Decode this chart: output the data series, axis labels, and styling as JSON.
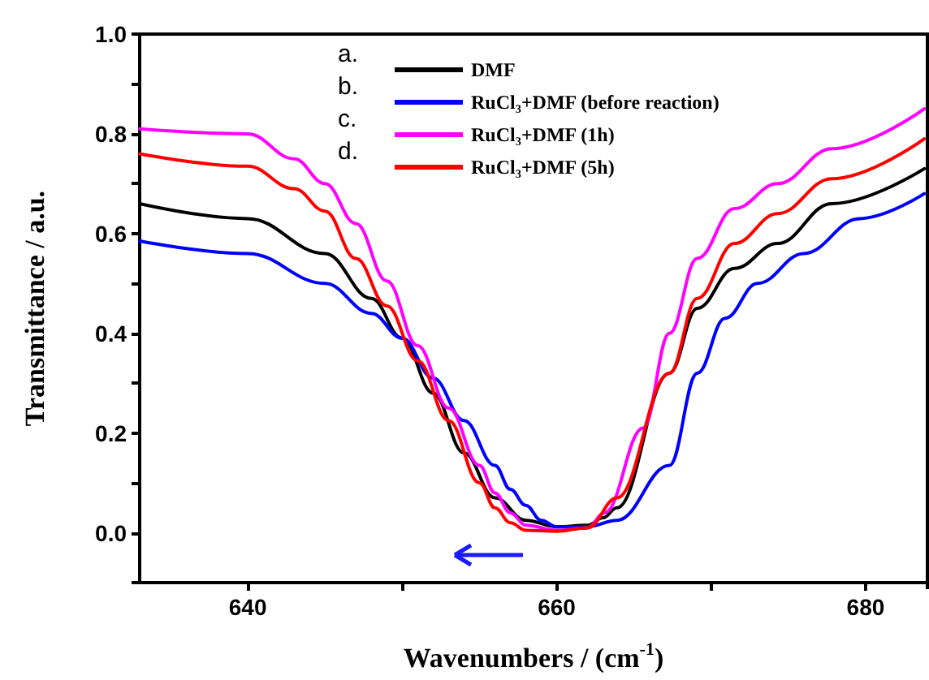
{
  "chart_data": {
    "type": "line",
    "xlabel": "Wavenumbers / (cm$^{-1}$)",
    "ylabel": "Transmittance / a.u.",
    "xlim": [
      633,
      684
    ],
    "xticks": [
      640,
      {
        "value": 650,
        "label": null
      },
      660,
      {
        "value": 670,
        "label": null
      },
      680
    ],
    "ylim": [
      -0.1,
      1.0
    ],
    "yticks": [
      {
        "value": -0.1,
        "label": null
      },
      {
        "value": 0,
        "label": "0.0"
      },
      {
        "value": 0.1,
        "label": null
      },
      0.2,
      {
        "value": 0.3,
        "label": null
      },
      0.4,
      {
        "value": 0.5,
        "label": null
      },
      0.6,
      {
        "value": 0.7,
        "label": null
      },
      0.8,
      {
        "value": 0.9,
        "label": null
      },
      {
        "value": 1.0,
        "label": "1.0"
      }
    ],
    "grid": false,
    "legend": "top",
    "marker": "none",
    "line_style": "solid",
    "annotations": [
      "a.",
      "b.",
      "c.",
      "d."
    ],
    "series": [
      {
        "name": "DMF",
        "color": "#000000",
        "x": [
          633,
          640,
          645,
          648,
          650,
          652,
          654,
          656,
          658,
          660,
          662,
          663,
          663.9,
          667.3,
          669.1,
          671.5,
          674.3,
          677.8,
          683.8
        ],
        "values": [
          0.66,
          0.63,
          0.56,
          0.47,
          0.39,
          0.28,
          0.16,
          0.07,
          0.025,
          0.012,
          0.015,
          0.03,
          0.05,
          0.32,
          0.45,
          0.53,
          0.58,
          0.66,
          0.73
        ]
      },
      {
        "name": "RuCl₃+DMF (before reaction)",
        "color": "#0000ff",
        "x": [
          633,
          640,
          645,
          648,
          650,
          652,
          654,
          656,
          657,
          658,
          659,
          660,
          662,
          663.9,
          667.3,
          669.1,
          670.9,
          673,
          676,
          679.6,
          683.8
        ],
        "values": [
          0.585,
          0.56,
          0.5,
          0.44,
          0.39,
          0.31,
          0.225,
          0.135,
          0.087,
          0.055,
          0.025,
          0.012,
          0.012,
          0.025,
          0.135,
          0.32,
          0.43,
          0.5,
          0.56,
          0.63,
          0.68
        ]
      },
      {
        "name": "RuCl₃+DMF (1h)",
        "color": "#ff00ff",
        "x": [
          633,
          640,
          643,
          645,
          647,
          649,
          651,
          653,
          655,
          656,
          657,
          658,
          660,
          662,
          663.1,
          665.6,
          667.3,
          669.1,
          671.5,
          674.3,
          677.8,
          683.8
        ],
        "values": [
          0.81,
          0.8,
          0.75,
          0.7,
          0.62,
          0.505,
          0.375,
          0.25,
          0.135,
          0.08,
          0.04,
          0.015,
          0.005,
          0.01,
          0.04,
          0.21,
          0.4,
          0.55,
          0.65,
          0.7,
          0.77,
          0.85
        ]
      },
      {
        "name": "RuCl₃+DMF (5h)",
        "color": "#ff0000",
        "x": [
          633,
          640,
          643,
          645,
          647,
          649,
          651,
          653,
          655,
          656,
          657,
          658,
          660,
          662,
          663.9,
          667.3,
          669.1,
          671.5,
          674.3,
          677.8,
          683.8
        ],
        "values": [
          0.76,
          0.735,
          0.69,
          0.645,
          0.55,
          0.455,
          0.345,
          0.225,
          0.1,
          0.05,
          0.02,
          0.005,
          0.003,
          0.01,
          0.07,
          0.32,
          0.47,
          0.58,
          0.64,
          0.71,
          0.79
        ]
      }
    ]
  }
}
